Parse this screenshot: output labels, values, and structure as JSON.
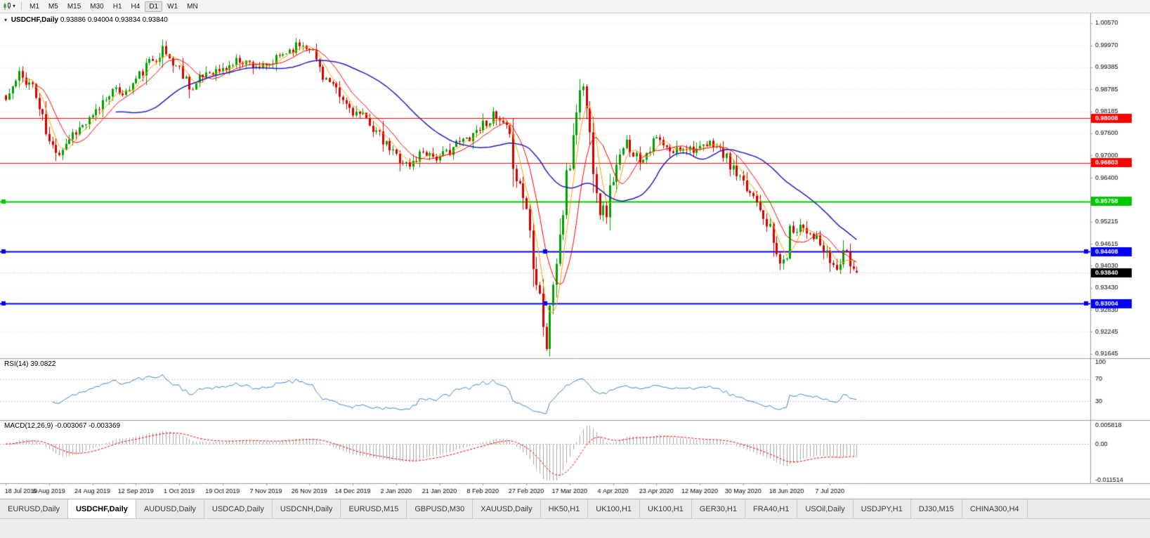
{
  "toolbar": {
    "timeframes": [
      "M1",
      "M5",
      "M15",
      "M30",
      "H1",
      "H4",
      "D1",
      "W1",
      "MN"
    ],
    "active_timeframe": "D1"
  },
  "chart": {
    "symbol_title": "USDCHF,Daily",
    "ohlc": "0.93886 0.94004 0.93834 0.93840",
    "dropdown_caret": "▾"
  },
  "indicators": {
    "rsi": {
      "name": "RSI(14)",
      "value": "39.0822"
    },
    "macd": {
      "name": "MACD(12,26,9)",
      "values": "-0.003067 -0.003369"
    }
  },
  "tabs": {
    "active_index": 1,
    "items": [
      "EURUSD,Daily",
      "USDCHF,Daily",
      "AUDUSD,Daily",
      "USDCAD,Daily",
      "USDCNH,Daily",
      "EURUSD,M15",
      "GBPUSD,M30",
      "XAUUSD,Daily",
      "HK50,H1",
      "UK100,H1",
      "UK100,H1",
      "GER30,H1",
      "FRA40,H1",
      "USOil,Daily",
      "USDJPY,H1",
      "DJ30,M15",
      "CHINA300,H4"
    ]
  },
  "colors": {
    "bull": "#00A000",
    "bear": "#D40000",
    "ma_fast": "#FFA000",
    "ma_mid": "#FF0000",
    "ma_slow": "#2020C0",
    "rsi_line": "#3C8DC5",
    "macd_hist": "#A8A8A8",
    "macd_signal": "#FF0000",
    "grid": "#E3E3E3",
    "axis_text": "#000000",
    "level_red": "#FF0000",
    "level_green": "#00C800",
    "level_blue": "#0000FF",
    "bid_badge_bg": "#000000"
  },
  "chart_data": {
    "type": "candlestick",
    "symbol": "USDCHF",
    "timeframe": "Daily",
    "last_candle": [
      0.93886,
      0.94004,
      0.93834,
      0.9384
    ],
    "y_ticks": [
      "1.00570",
      "0.99970",
      "0.99385",
      "0.98785",
      "0.98185",
      "0.97600",
      "0.97000",
      "0.96400",
      "0.95815",
      "0.95215",
      "0.94615",
      "0.94030",
      "0.93430",
      "0.92830",
      "0.92245",
      "0.91645"
    ],
    "x_labels": [
      "18 Jul 2019",
      "6 Aug 2019",
      "24 Aug 2019",
      "12 Sep 2019",
      "1 Oct 2019",
      "19 Oct 2019",
      "7 Nov 2019",
      "26 Nov 2019",
      "14 Dec 2019",
      "2 Jan 2020",
      "21 Jan 2020",
      "8 Feb 2020",
      "27 Feb 2020",
      "17 Mar 2020",
      "4 Apr 2020",
      "23 Apr 2020",
      "12 May 2020",
      "30 May 2020",
      "18 Jun 2020",
      "7 Jul 2020"
    ],
    "x_label_step": 13,
    "hlines": [
      {
        "price": 0.98008,
        "label": "0.98008",
        "color": "#FF0000",
        "width": 1,
        "handles": 0
      },
      {
        "price": 0.96803,
        "label": "0.96803",
        "color": "#FF0000",
        "width": 1,
        "handles": 0
      },
      {
        "price": 0.95758,
        "label": "0.95758",
        "color": "#00C800",
        "width": 2,
        "handles": 1
      },
      {
        "price": 0.94408,
        "label": "0.94408",
        "color": "#0000FF",
        "width": 2,
        "handles": 3
      },
      {
        "price": 0.93004,
        "label": "0.93004",
        "color": "#0000FF",
        "width": 2,
        "handles": 3
      }
    ],
    "current_price": {
      "value": 0.9384,
      "label": "0.93840"
    },
    "rsi_axis": [
      "100",
      "70",
      "30"
    ],
    "rsi_levels": [
      70,
      30
    ],
    "macd_axis": [
      "0.005818",
      "0.00",
      "-0.011514"
    ],
    "ma_periods": [
      5,
      10,
      34
    ],
    "candle_gen": {
      "count": 256,
      "seed": 11,
      "x0": 8,
      "dx": 4.75,
      "clamp_hi": 1.0045,
      "clamp_lo": 0.9158
    },
    "price_anchors": [
      [
        0,
        0.985
      ],
      [
        4,
        0.9915
      ],
      [
        8,
        0.989
      ],
      [
        13,
        0.973
      ],
      [
        16,
        0.971
      ],
      [
        20,
        0.976
      ],
      [
        26,
        0.98
      ],
      [
        31,
        0.9875
      ],
      [
        36,
        0.987
      ],
      [
        39,
        0.9905
      ],
      [
        43,
        0.995
      ],
      [
        47,
        0.9985
      ],
      [
        50,
        0.995
      ],
      [
        52,
        0.9935
      ],
      [
        56,
        0.988
      ],
      [
        60,
        0.9925
      ],
      [
        65,
        0.993
      ],
      [
        70,
        0.996
      ],
      [
        74,
        0.9945
      ],
      [
        78,
        0.9935
      ],
      [
        83,
        0.9975
      ],
      [
        88,
        1.0
      ],
      [
        91,
        0.9995
      ],
      [
        95,
        0.992
      ],
      [
        100,
        0.9855
      ],
      [
        104,
        0.982
      ],
      [
        109,
        0.979
      ],
      [
        113,
        0.9735
      ],
      [
        117,
        0.97
      ],
      [
        121,
        0.967
      ],
      [
        125,
        0.9715
      ],
      [
        130,
        0.969
      ],
      [
        134,
        0.9725
      ],
      [
        138,
        0.9745
      ],
      [
        143,
        0.9785
      ],
      [
        146,
        0.9805
      ],
      [
        150,
        0.977
      ],
      [
        153,
        0.965
      ],
      [
        156,
        0.956
      ],
      [
        158,
        0.943
      ],
      [
        160,
        0.933
      ],
      [
        162,
        0.9185
      ],
      [
        164,
        0.936
      ],
      [
        166,
        0.948
      ],
      [
        168,
        0.962
      ],
      [
        169,
        0.968
      ],
      [
        171,
        0.984
      ],
      [
        173,
        0.9895
      ],
      [
        175,
        0.975
      ],
      [
        178,
        0.9565
      ],
      [
        180,
        0.9545
      ],
      [
        182,
        0.965
      ],
      [
        186,
        0.973
      ],
      [
        190,
        0.969
      ],
      [
        195,
        0.9745
      ],
      [
        199,
        0.9705
      ],
      [
        203,
        0.9725
      ],
      [
        208,
        0.9715
      ],
      [
        212,
        0.9735
      ],
      [
        216,
        0.969
      ],
      [
        221,
        0.9615
      ],
      [
        225,
        0.9585
      ],
      [
        228,
        0.9525
      ],
      [
        231,
        0.943
      ],
      [
        233,
        0.9405
      ],
      [
        235,
        0.949
      ],
      [
        238,
        0.9515
      ],
      [
        242,
        0.9485
      ],
      [
        245,
        0.944
      ],
      [
        249,
        0.939
      ],
      [
        251,
        0.9445
      ],
      [
        252,
        0.942
      ],
      [
        254,
        0.9395
      ],
      [
        255,
        0.9384
      ]
    ]
  }
}
